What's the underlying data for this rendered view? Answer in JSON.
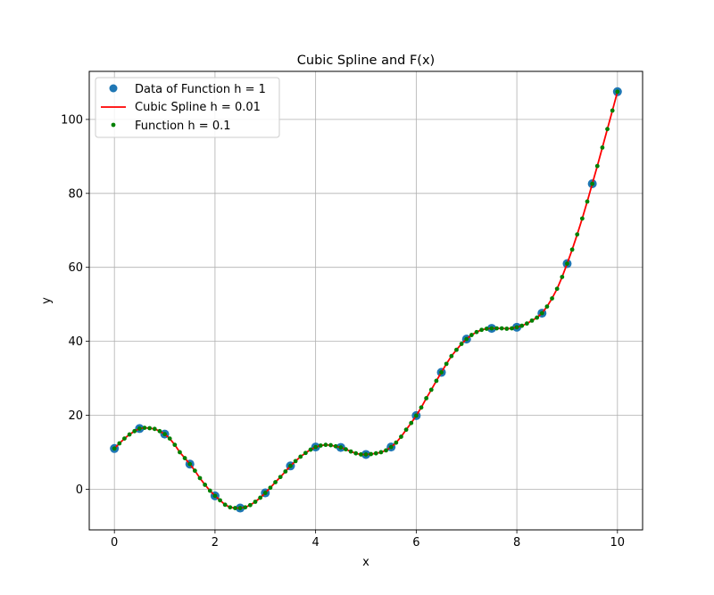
{
  "chart_data": {
    "type": "line",
    "title": "Cubic Spline and F(x)",
    "xlabel": "x",
    "ylabel": "y",
    "xlim": [
      -0.5,
      10.5
    ],
    "ylim": [
      -11,
      113
    ],
    "xticks": [
      0,
      2,
      4,
      6,
      8,
      10
    ],
    "yticks": [
      0,
      20,
      40,
      60,
      80,
      100
    ],
    "grid": true,
    "legend_position": "top-left",
    "colors": {
      "data": "#1f77b4",
      "spline": "#ff0000",
      "function": "#008000"
    },
    "series": [
      {
        "name": "Data of Function h = 1",
        "marker": "circle",
        "x": [
          0,
          0.5,
          1,
          1.5,
          2,
          2.5,
          3,
          3.5,
          4,
          4.5,
          5,
          5.5,
          6,
          6.5,
          7,
          7.5,
          8,
          8.5,
          9,
          9.5,
          10
        ],
        "y": [
          11,
          16.4,
          14.9,
          6.8,
          -1.8,
          -5.1,
          -1,
          6.3,
          11.4,
          11.3,
          9.4,
          11.4,
          19.9,
          31.6,
          40.6,
          43.5,
          43.8,
          47.6,
          61,
          82.6,
          107.5
        ]
      },
      {
        "name": "Cubic Spline h = 0.01",
        "marker": "line",
        "x": [
          0,
          0.1,
          0.2,
          0.3,
          0.4,
          0.5,
          0.6,
          0.7,
          0.8,
          0.9,
          1,
          1.1,
          1.2,
          1.3,
          1.4,
          1.5,
          1.6,
          1.7,
          1.8,
          1.9,
          2,
          2.1,
          2.2,
          2.3,
          2.4,
          2.5,
          2.6,
          2.7,
          2.8,
          2.9,
          3,
          3.1,
          3.2,
          3.3,
          3.4,
          3.5,
          3.6,
          3.7,
          3.8,
          3.9,
          4,
          4.1,
          4.2,
          4.3,
          4.4,
          4.5,
          4.6,
          4.7,
          4.8,
          4.9,
          5,
          5.1,
          5.2,
          5.3,
          5.4,
          5.5,
          5.6,
          5.7,
          5.8,
          5.9,
          6,
          6.1,
          6.2,
          6.3,
          6.4,
          6.5,
          6.6,
          6.7,
          6.8,
          6.9,
          7,
          7.1,
          7.2,
          7.3,
          7.4,
          7.5,
          7.6,
          7.7,
          7.8,
          7.9,
          8,
          8.1,
          8.2,
          8.3,
          8.4,
          8.5,
          8.6,
          8.7,
          8.8,
          8.9,
          9,
          9.1,
          9.2,
          9.3,
          9.4,
          9.5,
          9.6,
          9.7,
          9.8,
          9.9,
          10
        ],
        "y": [
          11,
          12.4,
          13.7,
          14.8,
          15.7,
          16.4,
          16.6,
          16.5,
          16.3,
          15.7,
          14.9,
          13.7,
          12,
          10,
          8.4,
          6.8,
          5,
          3,
          1.2,
          -0.4,
          -1.8,
          -3,
          -4.2,
          -4.9,
          -5.1,
          -5.1,
          -4.9,
          -4.3,
          -3.4,
          -2.3,
          -1,
          0.4,
          1.9,
          3.3,
          4.8,
          6.3,
          7.6,
          8.8,
          9.8,
          10.7,
          11.4,
          11.8,
          12,
          11.9,
          11.6,
          11.3,
          10.8,
          10.2,
          9.7,
          9.4,
          9.4,
          9.5,
          9.7,
          10,
          10.5,
          11.4,
          12.6,
          14.2,
          16.1,
          17.9,
          19.9,
          22.1,
          24.6,
          26.9,
          29.3,
          31.6,
          33.9,
          36,
          37.7,
          39.3,
          40.6,
          41.7,
          42.5,
          43.1,
          43.4,
          43.5,
          43.5,
          43.5,
          43.4,
          43.5,
          43.8,
          44.2,
          44.8,
          45.6,
          46.4,
          47.6,
          49.4,
          51.6,
          54.2,
          57.4,
          61,
          64.8,
          68.9,
          73.2,
          77.8,
          82.6,
          87.4,
          92.4,
          97.4,
          102.4,
          107.5
        ]
      },
      {
        "name": "Function h = 0.1",
        "marker": "dot",
        "x": [
          0,
          0.1,
          0.2,
          0.3,
          0.4,
          0.5,
          0.6,
          0.7,
          0.8,
          0.9,
          1,
          1.1,
          1.2,
          1.3,
          1.4,
          1.5,
          1.6,
          1.7,
          1.8,
          1.9,
          2,
          2.1,
          2.2,
          2.3,
          2.4,
          2.5,
          2.6,
          2.7,
          2.8,
          2.9,
          3,
          3.1,
          3.2,
          3.3,
          3.4,
          3.5,
          3.6,
          3.7,
          3.8,
          3.9,
          4,
          4.1,
          4.2,
          4.3,
          4.4,
          4.5,
          4.6,
          4.7,
          4.8,
          4.9,
          5,
          5.1,
          5.2,
          5.3,
          5.4,
          5.5,
          5.6,
          5.7,
          5.8,
          5.9,
          6,
          6.1,
          6.2,
          6.3,
          6.4,
          6.5,
          6.6,
          6.7,
          6.8,
          6.9,
          7,
          7.1,
          7.2,
          7.3,
          7.4,
          7.5,
          7.6,
          7.7,
          7.8,
          7.9,
          8,
          8.1,
          8.2,
          8.3,
          8.4,
          8.5,
          8.6,
          8.7,
          8.8,
          8.9,
          9,
          9.1,
          9.2,
          9.3,
          9.4,
          9.5,
          9.6,
          9.7,
          9.8,
          9.9,
          10
        ],
        "y": [
          11,
          12.4,
          13.7,
          14.8,
          15.7,
          16.4,
          16.6,
          16.5,
          16.3,
          15.7,
          14.9,
          13.7,
          12,
          10,
          8.4,
          6.8,
          5,
          3,
          1.2,
          -0.4,
          -1.8,
          -3,
          -4.2,
          -4.9,
          -5.1,
          -5.1,
          -4.9,
          -4.3,
          -3.4,
          -2.3,
          -1,
          0.4,
          1.9,
          3.3,
          4.8,
          6.3,
          7.6,
          8.8,
          9.8,
          10.7,
          11.4,
          11.8,
          12,
          11.9,
          11.6,
          11.3,
          10.8,
          10.2,
          9.7,
          9.4,
          9.4,
          9.5,
          9.7,
          10,
          10.5,
          11.4,
          12.6,
          14.2,
          16.1,
          17.9,
          19.9,
          22.1,
          24.6,
          26.9,
          29.3,
          31.6,
          33.9,
          36,
          37.7,
          39.3,
          40.6,
          41.7,
          42.5,
          43.1,
          43.4,
          43.5,
          43.5,
          43.5,
          43.4,
          43.5,
          43.8,
          44.2,
          44.8,
          45.6,
          46.4,
          47.6,
          49.4,
          51.6,
          54.2,
          57.4,
          61,
          64.8,
          68.9,
          73.2,
          77.8,
          82.6,
          87.4,
          92.4,
          97.4,
          102.4,
          107.5
        ]
      }
    ]
  }
}
